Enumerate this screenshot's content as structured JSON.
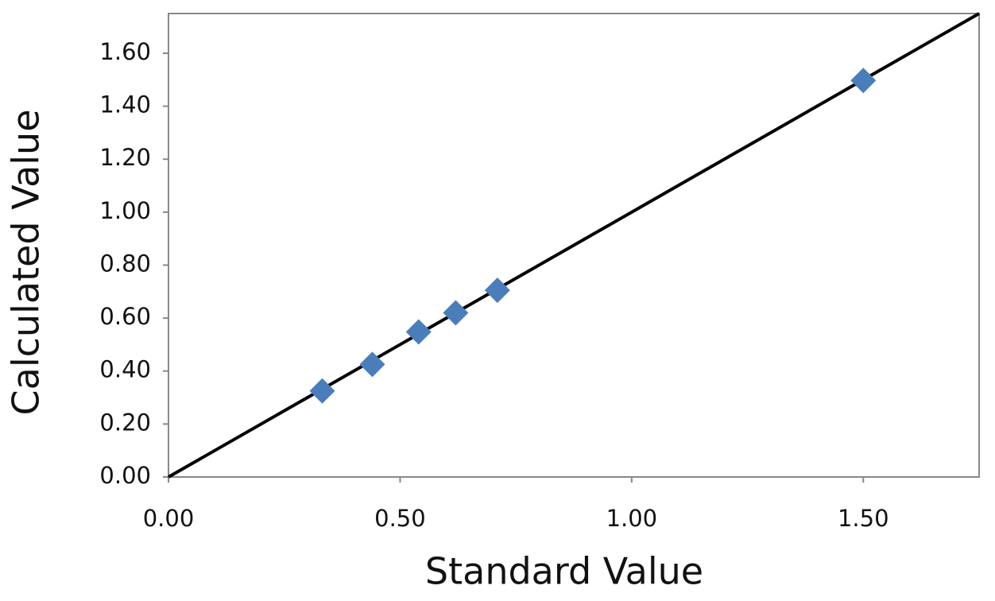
{
  "chart_data": {
    "type": "scatter",
    "x_label": "Standard Value",
    "y_label": "Calculated Value",
    "series": [
      {
        "color": "#4a7ebb",
        "x": [
          0.332,
          0.44,
          0.54,
          0.62,
          0.71,
          1.5
        ],
        "values": [
          0.325,
          0.425,
          0.548,
          0.62,
          0.705,
          1.497
        ]
      }
    ],
    "reference_line": {
      "color": "#000000",
      "x": [
        0,
        1.75
      ],
      "y": [
        0,
        1.75
      ]
    },
    "xlim": [
      0,
      1.75
    ],
    "ylim": [
      0,
      1.75
    ],
    "xticks": [
      {
        "value": 0,
        "label": "0.00"
      },
      {
        "value": 0.5,
        "label": "0.50"
      },
      {
        "value": 1,
        "label": "1.00"
      },
      {
        "value": 1.5,
        "label": "1.50"
      }
    ],
    "yticks": [
      {
        "value": 0,
        "label": "0.00"
      },
      {
        "value": 0.2,
        "label": "0.20"
      },
      {
        "value": 0.4,
        "label": "0.40"
      },
      {
        "value": 0.6,
        "label": "0.60"
      },
      {
        "value": 0.8,
        "label": "0.80"
      },
      {
        "value": 1,
        "label": "1.00"
      },
      {
        "value": 1.2,
        "label": "1.20"
      },
      {
        "value": 1.4,
        "label": "1.40"
      },
      {
        "value": 1.6,
        "label": "1.60"
      }
    ],
    "grid": false
  }
}
